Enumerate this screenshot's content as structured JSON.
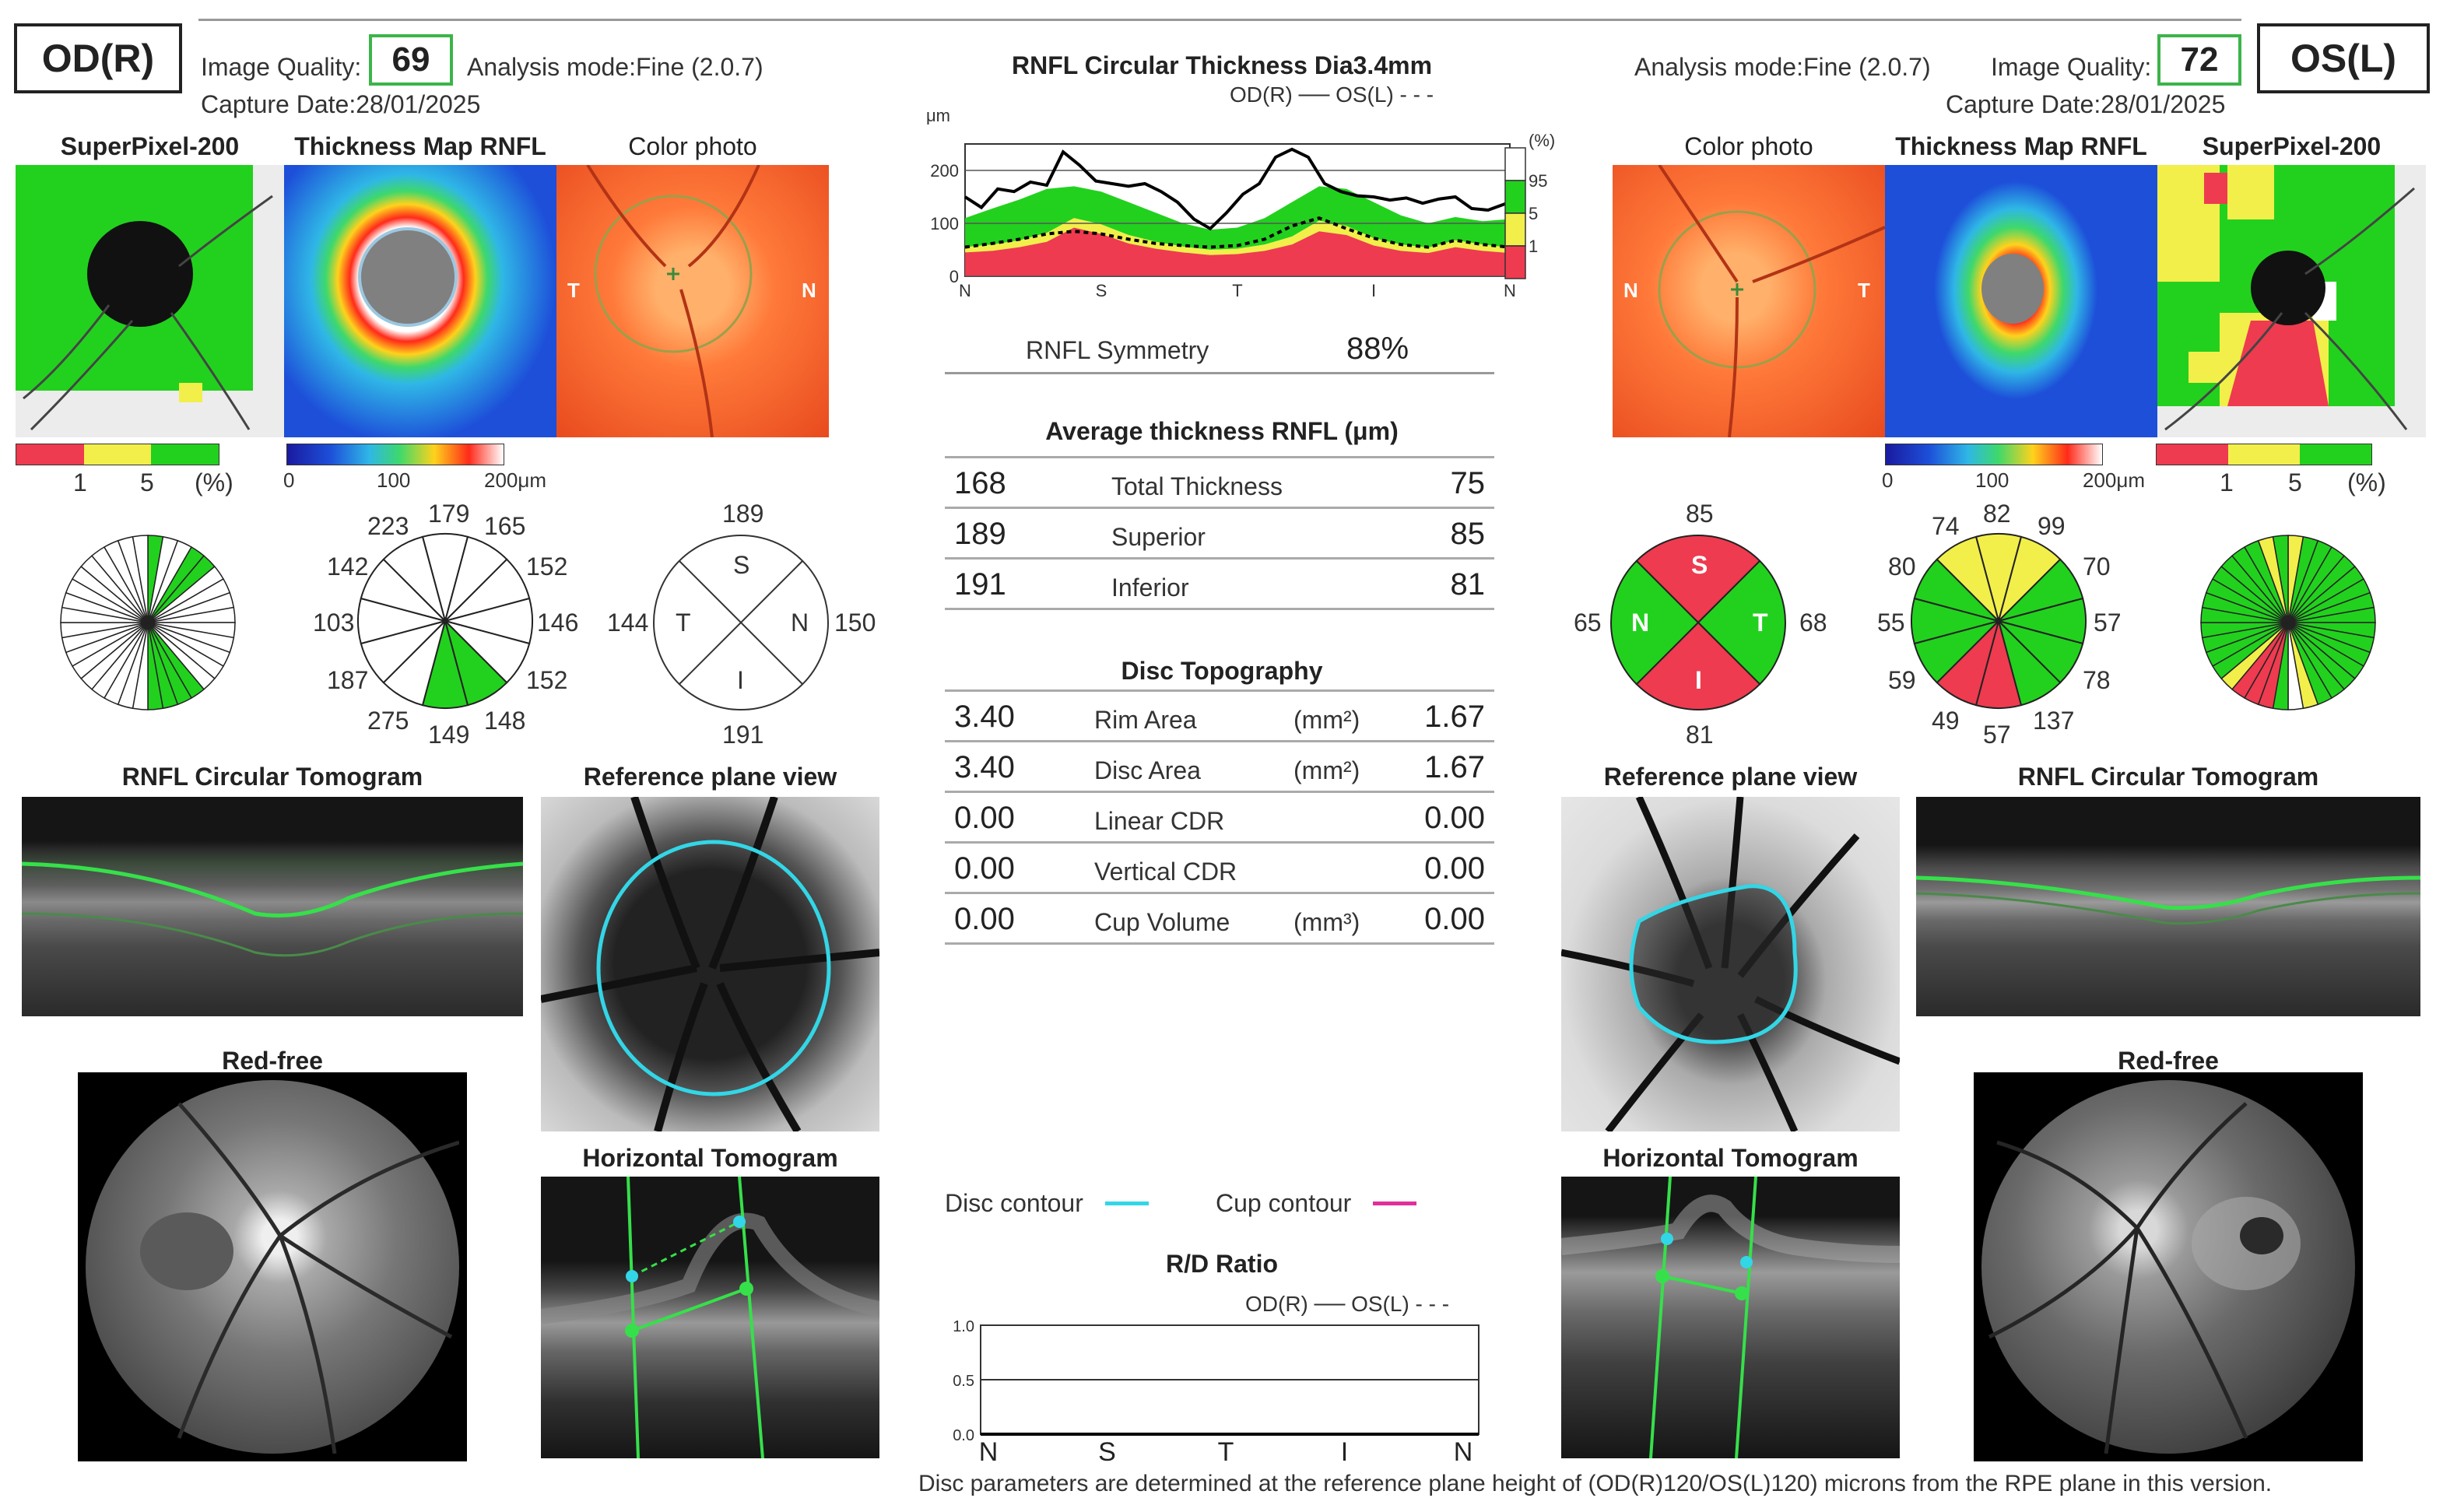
{
  "od": {
    "eye_label": "OD(R)",
    "image_quality_label": "Image Quality:",
    "image_quality": "69",
    "analysis_mode": "Analysis mode:Fine  (2.0.7)",
    "capture_date": "Capture Date:28/01/2025",
    "superpixel_title": "SuperPixel-200",
    "thickness_map_title": "Thickness Map RNFL",
    "color_photo_title": "Color photo",
    "legend_pct": [
      "1",
      "5",
      "(%)"
    ],
    "legend_um": [
      "0",
      "100",
      "200μm"
    ],
    "clock_values": [
      "223",
      "179",
      "165",
      "142",
      "152",
      "103",
      "146",
      "187",
      "152",
      "275",
      "149",
      "148"
    ],
    "quadrants": {
      "s": "189",
      "t": "144",
      "n": "150",
      "i": "191"
    },
    "quad_letters": {
      "s": "S",
      "t": "T",
      "n": "N",
      "i": "I"
    },
    "photo_letters": {
      "left": "T",
      "right": "N"
    },
    "rnfl_tomogram_title": "RNFL Circular Tomogram",
    "reference_plane_title": "Reference plane view",
    "red_free_title": "Red-free",
    "horizontal_tomogram_title": "Horizontal Tomogram"
  },
  "os": {
    "eye_label": "OS(L)",
    "image_quality_label": "Image Quality:",
    "image_quality": "72",
    "analysis_mode": "Analysis mode:Fine  (2.0.7)",
    "capture_date": "Capture Date:28/01/2025",
    "superpixel_title": "SuperPixel-200",
    "thickness_map_title": "Thickness Map RNFL",
    "color_photo_title": "Color photo",
    "legend_pct": [
      "1",
      "5",
      "(%)"
    ],
    "legend_um": [
      "0",
      "100",
      "200μm"
    ],
    "clock_values": [
      "74",
      "82",
      "99",
      "80",
      "70",
      "55",
      "57",
      "59",
      "78",
      "49",
      "57",
      "137"
    ],
    "quadrants": {
      "s": "85",
      "t": "68",
      "n": "65",
      "i": "81"
    },
    "quad_letters": {
      "s": "S",
      "t": "T",
      "n": "N",
      "i": "I"
    },
    "photo_letters": {
      "left": "N",
      "right": "T"
    },
    "rnfl_tomogram_title": "RNFL Circular Tomogram",
    "reference_plane_title": "Reference plane view",
    "red_free_title": "Red-free",
    "horizontal_tomogram_title": "Horizontal Tomogram"
  },
  "center": {
    "rnfl_chart_title": "RNFL Circular Thickness Dia3.4mm",
    "rnfl_legend": "OD(R) ── OS(L) - - -",
    "rnfl_symmetry_label": "RNFL Symmetry",
    "rnfl_symmetry_value": "88%",
    "avg_title": "Average thickness RNFL (μm)",
    "avg_rows": [
      {
        "od": "168",
        "label": "Total Thickness",
        "os": "75"
      },
      {
        "od": "189",
        "label": "Superior",
        "os": "85"
      },
      {
        "od": "191",
        "label": "Inferior",
        "os": "81"
      }
    ],
    "disc_title": "Disc Topography",
    "disc_rows": [
      {
        "od": "3.40",
        "label": "Rim Area",
        "unit": "(mm²)",
        "os": "1.67"
      },
      {
        "od": "3.40",
        "label": "Disc Area",
        "unit": "(mm²)",
        "os": "1.67"
      },
      {
        "od": "0.00",
        "label": "Linear CDR",
        "unit": "",
        "os": "0.00"
      },
      {
        "od": "0.00",
        "label": "Vertical CDR",
        "unit": "",
        "os": "0.00"
      },
      {
        "od": "0.00",
        "label": "Cup Volume",
        "unit": "(mm³)",
        "os": "0.00"
      }
    ],
    "disc_contour_label": "Disc contour",
    "cup_contour_label": "Cup contour",
    "rd_title": "R/D Ratio",
    "rd_legend": "OD(R) ── OS(L) - - -",
    "footnote": "Disc parameters are determined at the reference plane height of (OD(R)120/OS(L)120) microns from the RPE plane in this version."
  },
  "colors": {
    "red": "#ee3b4f",
    "yellow": "#f2ef4a",
    "green": "#22d11e",
    "white": "#ffffff",
    "disc_contour": "#33d6e6",
    "cup_contour": "#e0309a",
    "quality_border": "#3cb44a"
  },
  "chart_data": [
    {
      "type": "line",
      "title": "RNFL Circular Thickness Dia3.4mm",
      "ylabel": "μm",
      "x_ticks": [
        "N",
        "S",
        "T",
        "I",
        "N"
      ],
      "y_ticks": [
        "0",
        "100",
        "200"
      ],
      "ylim": [
        0,
        250
      ],
      "normative_legend": [
        "(%)",
        "95",
        "5",
        "1"
      ],
      "normative_bands": {
        "x": [
          0,
          5,
          10,
          15,
          20,
          25,
          30,
          35,
          40,
          45,
          50,
          55,
          60,
          65,
          70,
          75,
          80,
          85,
          90,
          95,
          100
        ],
        "p1": [
          45,
          48,
          55,
          65,
          92,
          80,
          62,
          52,
          45,
          40,
          42,
          48,
          60,
          85,
          78,
          58,
          48,
          44,
          55,
          48,
          44
        ],
        "p5": [
          55,
          60,
          68,
          82,
          110,
          98,
          78,
          65,
          56,
          50,
          52,
          60,
          75,
          105,
          95,
          72,
          60,
          54,
          68,
          60,
          54
        ],
        "p95": [
          110,
          128,
          145,
          165,
          170,
          160,
          140,
          120,
          100,
          88,
          92,
          110,
          140,
          170,
          165,
          140,
          115,
          100,
          112,
          104,
          108
        ]
      },
      "series": [
        {
          "name": "OD(R)",
          "x": [
            0,
            3,
            6,
            9,
            12,
            15,
            18,
            21,
            24,
            27,
            30,
            33,
            36,
            39,
            42,
            45,
            48,
            51,
            54,
            57,
            60,
            63,
            66,
            69,
            72,
            75,
            78,
            81,
            84,
            87,
            90,
            93,
            96,
            100
          ],
          "values": [
            150,
            130,
            165,
            160,
            178,
            172,
            235,
            210,
            180,
            175,
            170,
            175,
            160,
            140,
            108,
            90,
            120,
            155,
            175,
            225,
            240,
            225,
            175,
            160,
            152,
            150,
            144,
            148,
            138,
            146,
            150,
            128,
            125,
            140
          ]
        },
        {
          "name": "OS(L)",
          "x": [
            0,
            5,
            10,
            15,
            20,
            25,
            30,
            35,
            40,
            45,
            50,
            55,
            60,
            65,
            70,
            75,
            80,
            85,
            90,
            95,
            100
          ],
          "values": [
            55,
            62,
            70,
            80,
            85,
            80,
            70,
            62,
            58,
            55,
            58,
            70,
            95,
            110,
            90,
            72,
            60,
            55,
            68,
            60,
            55
          ]
        }
      ]
    },
    {
      "type": "line",
      "title": "R/D Ratio",
      "x_ticks": [
        "N",
        "S",
        "T",
        "I",
        "N"
      ],
      "y_ticks": [
        "1.0",
        "0.5",
        "0.0"
      ],
      "ylim": [
        0,
        1.0
      ],
      "series": [
        {
          "name": "OD(R)",
          "x": [
            0,
            100
          ],
          "values": [
            0,
            0
          ]
        },
        {
          "name": "OS(L)",
          "x": [
            0,
            100
          ],
          "values": [
            0,
            0
          ]
        }
      ]
    }
  ]
}
